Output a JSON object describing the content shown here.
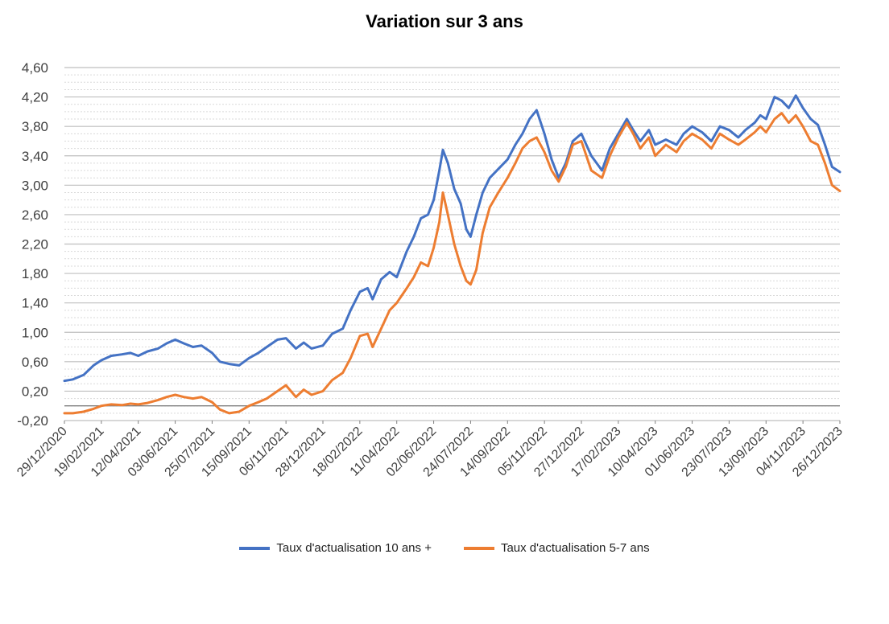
{
  "chart_data": {
    "type": "line",
    "title": "Variation sur 3 ans",
    "ylim": [
      -0.2,
      4.6
    ],
    "y_ticks": [
      "-0,20",
      "0,20",
      "0,60",
      "1,00",
      "1,40",
      "1,80",
      "2,20",
      "2,60",
      "3,00",
      "3,40",
      "3,80",
      "4,20",
      "4,60"
    ],
    "y_minor_grid": true,
    "x_range": [
      "2020-12-29",
      "2023-12-26"
    ],
    "x_ticks": [
      "29/12/2020",
      "19/02/2021",
      "12/04/2021",
      "03/06/2021",
      "25/07/2021",
      "15/09/2021",
      "06/11/2021",
      "28/12/2021",
      "18/02/2022",
      "11/04/2022",
      "02/06/2022",
      "24/07/2022",
      "14/09/2022",
      "05/11/2022",
      "27/12/2022",
      "17/02/2023",
      "10/04/2023",
      "01/06/2023",
      "23/07/2023",
      "13/09/2023",
      "04/11/2023",
      "26/12/2023"
    ],
    "legend_position": "bottom",
    "series": [
      {
        "name": "Taux d'actualisation 10 ans +",
        "color": "#4472C4",
        "x": [
          "2020-12-29",
          "2021-01-10",
          "2021-01-25",
          "2021-02-08",
          "2021-02-19",
          "2021-03-05",
          "2021-03-20",
          "2021-04-01",
          "2021-04-12",
          "2021-04-25",
          "2021-05-10",
          "2021-05-22",
          "2021-06-03",
          "2021-06-15",
          "2021-06-28",
          "2021-07-10",
          "2021-07-25",
          "2021-08-05",
          "2021-08-18",
          "2021-09-01",
          "2021-09-15",
          "2021-09-28",
          "2021-10-10",
          "2021-10-25",
          "2021-11-06",
          "2021-11-20",
          "2021-12-01",
          "2021-12-12",
          "2021-12-28",
          "2022-01-10",
          "2022-01-25",
          "2022-02-05",
          "2022-02-18",
          "2022-03-01",
          "2022-03-08",
          "2022-03-20",
          "2022-04-01",
          "2022-04-11",
          "2022-04-25",
          "2022-05-05",
          "2022-05-15",
          "2022-05-25",
          "2022-06-02",
          "2022-06-10",
          "2022-06-15",
          "2022-06-22",
          "2022-07-01",
          "2022-07-10",
          "2022-07-18",
          "2022-07-24",
          "2022-08-01",
          "2022-08-10",
          "2022-08-20",
          "2022-09-01",
          "2022-09-14",
          "2022-09-25",
          "2022-10-05",
          "2022-10-15",
          "2022-10-25",
          "2022-11-05",
          "2022-11-15",
          "2022-11-25",
          "2022-12-05",
          "2022-12-15",
          "2022-12-27",
          "2023-01-10",
          "2023-01-25",
          "2023-02-05",
          "2023-02-17",
          "2023-03-01",
          "2023-03-10",
          "2023-03-20",
          "2023-04-01",
          "2023-04-10",
          "2023-04-25",
          "2023-05-10",
          "2023-05-20",
          "2023-06-01",
          "2023-06-15",
          "2023-06-28",
          "2023-07-10",
          "2023-07-23",
          "2023-08-05",
          "2023-08-15",
          "2023-08-28",
          "2023-09-05",
          "2023-09-13",
          "2023-09-25",
          "2023-10-05",
          "2023-10-15",
          "2023-10-25",
          "2023-11-04",
          "2023-11-15",
          "2023-11-25",
          "2023-12-05",
          "2023-12-15",
          "2023-12-26"
        ],
        "values": [
          0.34,
          0.36,
          0.42,
          0.55,
          0.62,
          0.68,
          0.7,
          0.72,
          0.68,
          0.74,
          0.78,
          0.85,
          0.9,
          0.85,
          0.8,
          0.82,
          0.72,
          0.6,
          0.57,
          0.55,
          0.65,
          0.72,
          0.8,
          0.9,
          0.92,
          0.78,
          0.86,
          0.78,
          0.82,
          0.98,
          1.05,
          1.3,
          1.55,
          1.6,
          1.45,
          1.72,
          1.82,
          1.75,
          2.1,
          2.3,
          2.55,
          2.6,
          2.8,
          3.2,
          3.48,
          3.3,
          2.95,
          2.75,
          2.4,
          2.3,
          2.6,
          2.9,
          3.1,
          3.22,
          3.35,
          3.55,
          3.7,
          3.9,
          4.02,
          3.7,
          3.35,
          3.1,
          3.3,
          3.6,
          3.7,
          3.4,
          3.2,
          3.5,
          3.7,
          3.9,
          3.75,
          3.6,
          3.75,
          3.55,
          3.62,
          3.55,
          3.7,
          3.8,
          3.72,
          3.6,
          3.8,
          3.75,
          3.65,
          3.75,
          3.85,
          3.95,
          3.9,
          4.2,
          4.15,
          4.05,
          4.22,
          4.05,
          3.9,
          3.82,
          3.55,
          3.25,
          3.18
        ]
      },
      {
        "name": "Taux d'actualisation 5-7 ans",
        "color": "#ED7D31",
        "x": [
          "2020-12-29",
          "2021-01-10",
          "2021-01-25",
          "2021-02-08",
          "2021-02-19",
          "2021-03-05",
          "2021-03-20",
          "2021-04-01",
          "2021-04-12",
          "2021-04-25",
          "2021-05-10",
          "2021-05-22",
          "2021-06-03",
          "2021-06-15",
          "2021-06-28",
          "2021-07-10",
          "2021-07-25",
          "2021-08-05",
          "2021-08-18",
          "2021-09-01",
          "2021-09-15",
          "2021-09-28",
          "2021-10-10",
          "2021-10-25",
          "2021-11-06",
          "2021-11-20",
          "2021-12-01",
          "2021-12-12",
          "2021-12-28",
          "2022-01-10",
          "2022-01-25",
          "2022-02-05",
          "2022-02-18",
          "2022-03-01",
          "2022-03-08",
          "2022-03-20",
          "2022-04-01",
          "2022-04-11",
          "2022-04-25",
          "2022-05-05",
          "2022-05-15",
          "2022-05-25",
          "2022-06-02",
          "2022-06-10",
          "2022-06-15",
          "2022-06-22",
          "2022-07-01",
          "2022-07-10",
          "2022-07-18",
          "2022-07-24",
          "2022-08-01",
          "2022-08-10",
          "2022-08-20",
          "2022-09-01",
          "2022-09-14",
          "2022-09-25",
          "2022-10-05",
          "2022-10-15",
          "2022-10-25",
          "2022-11-05",
          "2022-11-15",
          "2022-11-25",
          "2022-12-05",
          "2022-12-15",
          "2022-12-27",
          "2023-01-10",
          "2023-01-25",
          "2023-02-05",
          "2023-02-17",
          "2023-03-01",
          "2023-03-10",
          "2023-03-20",
          "2023-04-01",
          "2023-04-10",
          "2023-04-25",
          "2023-05-10",
          "2023-05-20",
          "2023-06-01",
          "2023-06-15",
          "2023-06-28",
          "2023-07-10",
          "2023-07-23",
          "2023-08-05",
          "2023-08-15",
          "2023-08-28",
          "2023-09-05",
          "2023-09-13",
          "2023-09-25",
          "2023-10-05",
          "2023-10-15",
          "2023-10-25",
          "2023-11-04",
          "2023-11-15",
          "2023-11-25",
          "2023-12-05",
          "2023-12-15",
          "2023-12-26"
        ],
        "values": [
          -0.1,
          -0.1,
          -0.08,
          -0.04,
          0.0,
          0.02,
          0.01,
          0.03,
          0.02,
          0.04,
          0.08,
          0.12,
          0.15,
          0.12,
          0.1,
          0.12,
          0.05,
          -0.05,
          -0.1,
          -0.08,
          0.0,
          0.05,
          0.1,
          0.2,
          0.28,
          0.12,
          0.22,
          0.15,
          0.2,
          0.35,
          0.45,
          0.65,
          0.95,
          0.98,
          0.8,
          1.05,
          1.3,
          1.4,
          1.6,
          1.75,
          1.95,
          1.9,
          2.15,
          2.5,
          2.9,
          2.6,
          2.2,
          1.9,
          1.7,
          1.65,
          1.85,
          2.35,
          2.7,
          2.9,
          3.1,
          3.3,
          3.5,
          3.6,
          3.65,
          3.45,
          3.2,
          3.05,
          3.25,
          3.55,
          3.6,
          3.2,
          3.1,
          3.4,
          3.65,
          3.85,
          3.7,
          3.5,
          3.65,
          3.4,
          3.55,
          3.45,
          3.6,
          3.7,
          3.62,
          3.5,
          3.7,
          3.62,
          3.55,
          3.62,
          3.72,
          3.8,
          3.72,
          3.9,
          3.98,
          3.85,
          3.95,
          3.8,
          3.6,
          3.55,
          3.3,
          3.0,
          2.92
        ]
      }
    ]
  }
}
